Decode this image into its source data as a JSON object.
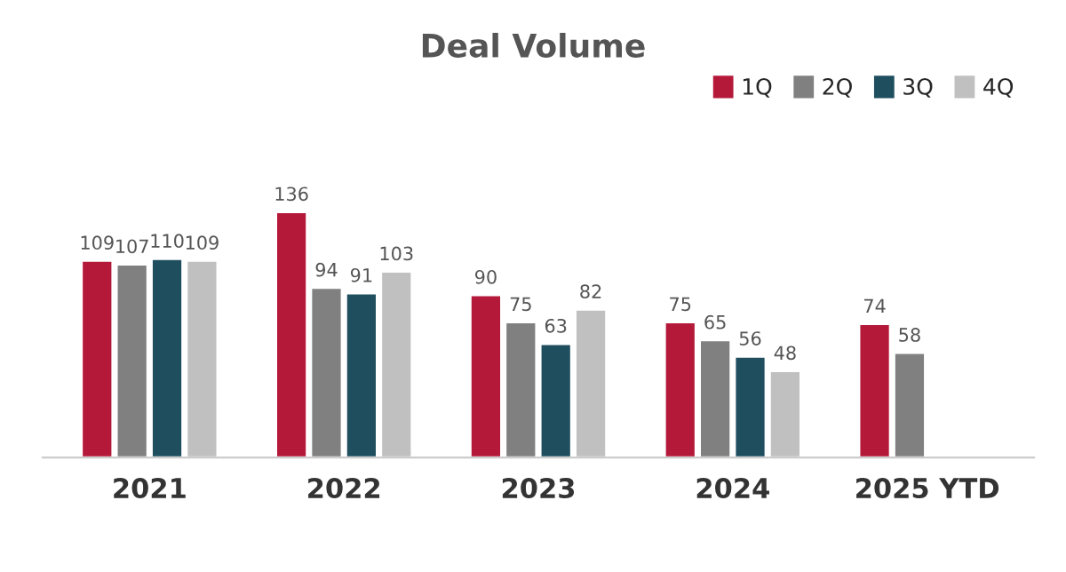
{
  "chart_data": {
    "type": "bar",
    "title": "Deal Volume",
    "categories": [
      "2021",
      "2022",
      "2023",
      "2024",
      "2025 YTD"
    ],
    "series": [
      {
        "name": "1Q",
        "color": "#b5193a",
        "values": [
          109,
          136,
          90,
          75,
          74
        ]
      },
      {
        "name": "2Q",
        "color": "#808080",
        "values": [
          107,
          94,
          75,
          65,
          58
        ]
      },
      {
        "name": "3Q",
        "color": "#1f4e5f",
        "values": [
          110,
          91,
          63,
          56,
          null
        ]
      },
      {
        "name": "4Q",
        "color": "#c0c0c0",
        "values": [
          109,
          103,
          82,
          48,
          null
        ]
      }
    ],
    "data_labels": true,
    "grid": false,
    "legend": "top right"
  }
}
